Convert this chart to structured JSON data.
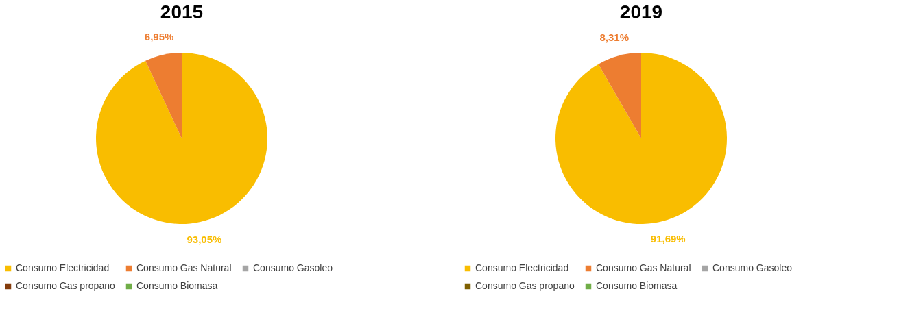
{
  "chart_data": [
    {
      "type": "pie",
      "title": "2015",
      "categories": [
        "Consumo Electricidad",
        "Consumo Gas Natural",
        "Consumo Gasoleo",
        "Consumo Gas propano",
        "Consumo Biomasa"
      ],
      "values": [
        93.05,
        6.95,
        0,
        0,
        0
      ],
      "colors": [
        "#f9bd00",
        "#ed7d31",
        "#a5a5a5",
        "#843c0c",
        "#70ad47"
      ],
      "value_labels": [
        "93,05%",
        "6,95%",
        null,
        null,
        null
      ],
      "legend": "bottom"
    },
    {
      "type": "pie",
      "title": "2019",
      "categories": [
        "Consumo Electricidad",
        "Consumo Gas Natural",
        "Consumo Gasoleo",
        "Consumo Gas propano",
        "Consumo Biomasa"
      ],
      "values": [
        91.69,
        8.31,
        0,
        0,
        0
      ],
      "colors": [
        "#f9bd00",
        "#ed7d31",
        "#a5a5a5",
        "#7f6000",
        "#70ad47"
      ],
      "value_labels": [
        "91,69%",
        "8,31%",
        null,
        null,
        null
      ],
      "legend": "bottom"
    }
  ]
}
